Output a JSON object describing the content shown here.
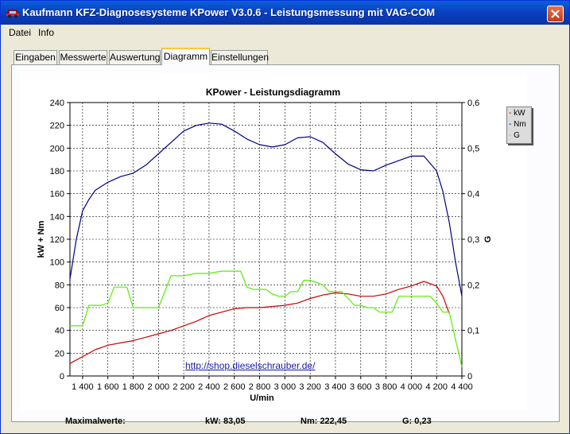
{
  "window": {
    "title": "Kaufmann KFZ-Diagnosesysteme  KPower V3.0.6 - Leistungsmessung mit VAG-COM"
  },
  "menu": [
    {
      "label": "Datei"
    },
    {
      "label": "Info"
    }
  ],
  "tabs": [
    {
      "label": "Eingaben",
      "active": false
    },
    {
      "label": "Messwerte",
      "active": false
    },
    {
      "label": "Auswertung",
      "active": false
    },
    {
      "label": "Diagramm",
      "active": true
    },
    {
      "label": "Einstellungen",
      "active": false
    }
  ],
  "chart_data": {
    "type": "line",
    "title": "KPower - Leistungsdiagramm",
    "xlabel": "U/min",
    "ylabel": "kW + Nm",
    "y2label": "G",
    "grid": true,
    "xlim": [
      1300,
      4400
    ],
    "ylim": [
      0,
      240
    ],
    "y2lim": [
      0,
      0.6
    ],
    "x_ticks": [
      1400,
      1600,
      1800,
      2000,
      2200,
      2400,
      2600,
      2800,
      3000,
      3200,
      3400,
      3600,
      3800,
      4000,
      4200,
      4400
    ],
    "x_tick_labels": [
      "1 400",
      "1 600",
      "1 800",
      "2 000",
      "2 200",
      "2 400",
      "2 600",
      "2 800",
      "3 000",
      "3 200",
      "3 400",
      "3 600",
      "3 800",
      "4 000",
      "4 200",
      "4 400"
    ],
    "y_ticks": [
      0,
      20,
      40,
      60,
      80,
      100,
      120,
      140,
      160,
      180,
      200,
      220,
      240
    ],
    "y2_ticks": [
      0,
      0.1,
      0.2,
      0.3,
      0.4,
      0.5,
      0.6
    ],
    "y2_tick_labels": [
      "0",
      "0,1",
      "0,2",
      "0,3",
      "0,4",
      "0,5",
      "0,6"
    ],
    "legend_position": "top-right",
    "series": [
      {
        "name": "kW",
        "axis": "left",
        "color": "#cc0000",
        "x": [
          1300,
          1400,
          1500,
          1600,
          1700,
          1800,
          1900,
          2000,
          2100,
          2200,
          2300,
          2400,
          2500,
          2600,
          2700,
          2800,
          2900,
          3000,
          3100,
          3200,
          3300,
          3400,
          3500,
          3600,
          3700,
          3800,
          3900,
          4000,
          4100,
          4200,
          4250,
          4300
        ],
        "y": [
          11,
          17,
          23,
          27,
          29,
          31,
          34,
          37,
          40,
          44,
          48,
          53,
          56,
          59,
          60,
          60,
          61,
          62,
          64,
          68,
          71,
          73,
          72,
          70,
          70,
          72,
          76,
          79,
          83,
          79,
          70,
          55
        ]
      },
      {
        "name": "Nm",
        "axis": "left",
        "color": "#000080",
        "x": [
          1300,
          1350,
          1400,
          1450,
          1500,
          1600,
          1700,
          1800,
          1900,
          2000,
          2100,
          2200,
          2300,
          2400,
          2500,
          2600,
          2700,
          2800,
          2900,
          3000,
          3100,
          3200,
          3300,
          3400,
          3500,
          3600,
          3700,
          3800,
          3900,
          4000,
          4100,
          4200,
          4250,
          4300,
          4350,
          4400
        ],
        "y": [
          85,
          120,
          145,
          155,
          163,
          170,
          175,
          178,
          185,
          195,
          205,
          215,
          220,
          222,
          221,
          215,
          208,
          203,
          201,
          203,
          209,
          210,
          205,
          195,
          186,
          181,
          180,
          185,
          189,
          193,
          193,
          180,
          162,
          135,
          100,
          70
        ]
      },
      {
        "name": "G",
        "axis": "right",
        "color": "#55ee00",
        "x": [
          1300,
          1380,
          1400,
          1450,
          1500,
          1550,
          1600,
          1650,
          1700,
          1750,
          1800,
          1850,
          1900,
          1950,
          2000,
          2100,
          2200,
          2300,
          2400,
          2500,
          2600,
          2650,
          2700,
          2750,
          2800,
          2850,
          2900,
          2950,
          3000,
          3050,
          3100,
          3150,
          3200,
          3250,
          3300,
          3350,
          3400,
          3450,
          3500,
          3550,
          3600,
          3650,
          3700,
          3750,
          3800,
          3850,
          3900,
          3950,
          4000,
          4050,
          4100,
          4150,
          4200,
          4250,
          4300,
          4350,
          4400
        ],
        "y": [
          0.11,
          0.11,
          0.11,
          0.155,
          0.155,
          0.155,
          0.16,
          0.195,
          0.195,
          0.195,
          0.15,
          0.15,
          0.15,
          0.15,
          0.15,
          0.22,
          0.22,
          0.225,
          0.225,
          0.23,
          0.23,
          0.23,
          0.195,
          0.19,
          0.19,
          0.19,
          0.18,
          0.175,
          0.175,
          0.185,
          0.185,
          0.21,
          0.21,
          0.205,
          0.2,
          0.185,
          0.185,
          0.185,
          0.17,
          0.155,
          0.155,
          0.15,
          0.15,
          0.14,
          0.14,
          0.14,
          0.175,
          0.175,
          0.175,
          0.175,
          0.175,
          0.175,
          0.16,
          0.14,
          0.14,
          0.08,
          0.02
        ]
      }
    ]
  },
  "url_text": "http://shop.dieselschrauber.de/",
  "maxwerte": {
    "label": "Maximalwerte:",
    "kw": "kW: 83,05",
    "nm": "Nm: 222,45",
    "g": "G: 0,23"
  }
}
